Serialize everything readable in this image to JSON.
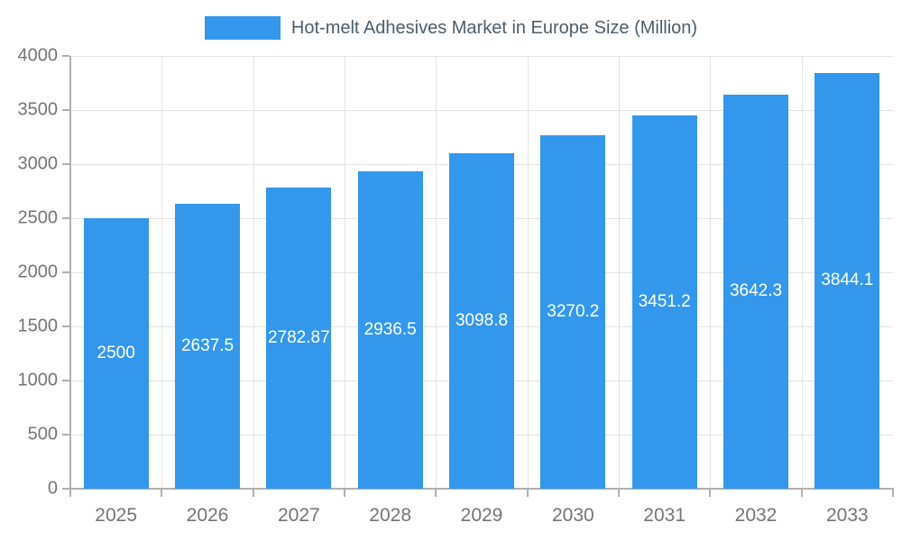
{
  "chart_data": {
    "type": "bar",
    "title": "Hot-melt Adhesives Market in Europe Size (Million)",
    "categories": [
      "2025",
      "2026",
      "2027",
      "2028",
      "2029",
      "2030",
      "2031",
      "2032",
      "2033"
    ],
    "values": [
      2500,
      2637.5,
      2782.87,
      2936.5,
      3098.8,
      3270.2,
      3451.2,
      3642.3,
      3844.1
    ],
    "bar_labels": [
      "2500",
      "2637.5",
      "2782.87",
      "2936.5",
      "3098.8",
      "3270.2",
      "3451.2",
      "3642.3",
      "3844.1"
    ],
    "xlabel": "",
    "ylabel": "",
    "ylim": [
      0,
      4000
    ],
    "yticks": [
      0,
      500,
      1000,
      1500,
      2000,
      2500,
      3000,
      3500,
      4000
    ],
    "grid": true,
    "legend_position": "top-center",
    "bar_color": "#3398EC",
    "bar_label_color": "#ffffff",
    "axis_label_color": "#757575",
    "title_color": "#4d5d6b",
    "gridline_color": "#e3e3e3",
    "axis_line_color": "#b0b0b0"
  }
}
